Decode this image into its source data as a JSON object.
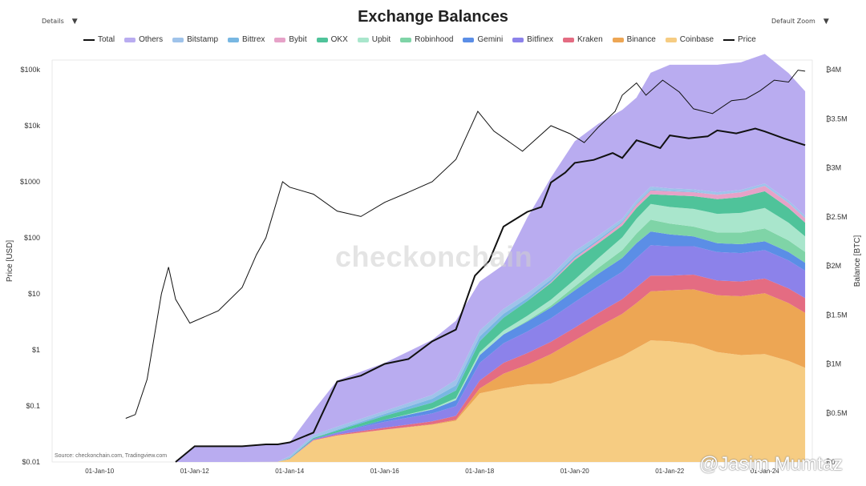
{
  "controls": {
    "details_label": "Details",
    "zoom_label": "Default Zoom",
    "dropdown_glyph": "▼"
  },
  "watermarks": {
    "center": "checkonchain",
    "corner": "@Jasim Mumtaz",
    "source": "Source: checkonchain.com, Tradingview.com"
  },
  "chart_data": {
    "type": "area",
    "title": "Exchange Balances",
    "xlabel": "",
    "ylabel_left": "Price [USD]",
    "ylabel_right": "Balance [BTC]",
    "x_range": [
      2009.0,
      2025.0
    ],
    "x_ticks": [
      {
        "x": 2010,
        "label": "01-Jan-10"
      },
      {
        "x": 2012,
        "label": "01-Jan-12"
      },
      {
        "x": 2014,
        "label": "01-Jan-14"
      },
      {
        "x": 2016,
        "label": "01-Jan-16"
      },
      {
        "x": 2018,
        "label": "01-Jan-18"
      },
      {
        "x": 2020,
        "label": "01-Jan-20"
      },
      {
        "x": 2022,
        "label": "01-Jan-22"
      },
      {
        "x": 2024,
        "label": "01-Jan-24"
      }
    ],
    "price_axis": {
      "scale": "log",
      "range": [
        0.01,
        100000
      ],
      "ticks": [
        {
          "v": 100000,
          "label": "$100k"
        },
        {
          "v": 10000,
          "label": "$10k"
        },
        {
          "v": 1000,
          "label": "$1000"
        },
        {
          "v": 100,
          "label": "$100"
        },
        {
          "v": 10,
          "label": "$10"
        },
        {
          "v": 1,
          "label": "$1"
        },
        {
          "v": 0.1,
          "label": "$0.1"
        },
        {
          "v": 0.01,
          "label": "$0.01"
        }
      ]
    },
    "balance_axis": {
      "range": [
        0,
        4000000
      ],
      "ticks": [
        {
          "v": 4000000,
          "label": "₿4M"
        },
        {
          "v": 3500000,
          "label": "₿3.5M"
        },
        {
          "v": 3000000,
          "label": "₿3M"
        },
        {
          "v": 2500000,
          "label": "₿2.5M"
        },
        {
          "v": 2000000,
          "label": "₿2M"
        },
        {
          "v": 1500000,
          "label": "₿1.5M"
        },
        {
          "v": 1000000,
          "label": "₿1M"
        },
        {
          "v": 500000,
          "label": "₿0.5M"
        },
        {
          "v": 0,
          "label": "₿0"
        }
      ]
    },
    "legend": [
      {
        "name": "Total",
        "color": "#111111",
        "kind": "line"
      },
      {
        "name": "Others",
        "color": "#b9acf0",
        "kind": "area"
      },
      {
        "name": "Bitstamp",
        "color": "#9fc3ea",
        "kind": "area"
      },
      {
        "name": "Bittrex",
        "color": "#78b7e2",
        "kind": "area"
      },
      {
        "name": "Bybit",
        "color": "#e6a2c8",
        "kind": "area"
      },
      {
        "name": "OKX",
        "color": "#4fc39a",
        "kind": "area"
      },
      {
        "name": "Upbit",
        "color": "#a9e6cc",
        "kind": "area"
      },
      {
        "name": "Robinhood",
        "color": "#7fd4a7",
        "kind": "area"
      },
      {
        "name": "Gemini",
        "color": "#5b8ee6",
        "kind": "area"
      },
      {
        "name": "Bitfinex",
        "color": "#8c82ea",
        "kind": "area"
      },
      {
        "name": "Kraken",
        "color": "#e46c82",
        "kind": "area"
      },
      {
        "name": "Binance",
        "color": "#eda654",
        "kind": "area"
      },
      {
        "name": "Coinbase",
        "color": "#f6cc82",
        "kind": "area"
      },
      {
        "name": "Price",
        "color": "#111111",
        "kind": "line"
      }
    ],
    "x": [
      2011.6,
      2012.0,
      2013.0,
      2013.75,
      2014.0,
      2014.5,
      2015.0,
      2016.0,
      2017.0,
      2017.5,
      2018.0,
      2018.5,
      2019.0,
      2019.5,
      2020.0,
      2020.5,
      2021.0,
      2021.3,
      2021.6,
      2022.0,
      2022.5,
      2023.0,
      2023.5,
      2024.0,
      2024.5,
      2024.85
    ],
    "series": [
      {
        "name": "Coinbase",
        "values": [
          0,
          0,
          0,
          2000,
          30000,
          220000,
          270000,
          330000,
          380000,
          420000,
          700000,
          750000,
          790000,
          800000,
          880000,
          980000,
          1080000,
          1160000,
          1240000,
          1230000,
          1200000,
          1120000,
          1090000,
          1100000,
          1030000,
          960000
        ]
      },
      {
        "name": "Binance",
        "values": [
          0,
          0,
          0,
          0,
          0,
          0,
          0,
          0,
          5000,
          10000,
          50000,
          150000,
          200000,
          300000,
          360000,
          400000,
          430000,
          460000,
          500000,
          520000,
          560000,
          580000,
          600000,
          620000,
          590000,
          560000
        ]
      },
      {
        "name": "Kraken",
        "values": [
          0,
          0,
          0,
          0,
          0,
          5000,
          10000,
          20000,
          30000,
          40000,
          80000,
          110000,
          120000,
          125000,
          130000,
          140000,
          150000,
          160000,
          160000,
          150000,
          150000,
          150000,
          150000,
          150000,
          150000,
          150000
        ]
      },
      {
        "name": "Bitfinex",
        "values": [
          0,
          0,
          0,
          0,
          5000,
          10000,
          20000,
          60000,
          80000,
          100000,
          180000,
          200000,
          220000,
          240000,
          260000,
          270000,
          280000,
          300000,
          310000,
          300000,
          290000,
          290000,
          290000,
          290000,
          285000,
          280000
        ]
      },
      {
        "name": "Gemini",
        "values": [
          0,
          0,
          0,
          0,
          0,
          0,
          0,
          20000,
          40000,
          60000,
          80000,
          90000,
          100000,
          110000,
          120000,
          130000,
          140000,
          150000,
          140000,
          120000,
          100000,
          90000,
          90000,
          90000,
          85000,
          80000
        ]
      },
      {
        "name": "Robinhood",
        "values": [
          0,
          0,
          0,
          0,
          0,
          0,
          0,
          0,
          0,
          0,
          0,
          0,
          10000,
          20000,
          40000,
          60000,
          80000,
          100000,
          120000,
          110000,
          100000,
          110000,
          120000,
          130000,
          120000,
          110000
        ]
      },
      {
        "name": "Upbit",
        "values": [
          0,
          0,
          0,
          0,
          0,
          0,
          0,
          0,
          10000,
          20000,
          30000,
          40000,
          50000,
          60000,
          70000,
          100000,
          130000,
          150000,
          160000,
          170000,
          180000,
          190000,
          200000,
          210000,
          180000,
          160000
        ]
      },
      {
        "name": "OKX",
        "values": [
          0,
          0,
          0,
          0,
          5000,
          10000,
          20000,
          40000,
          60000,
          80000,
          110000,
          130000,
          150000,
          170000,
          200000,
          150000,
          120000,
          110000,
          100000,
          120000,
          130000,
          150000,
          160000,
          170000,
          150000,
          140000
        ]
      },
      {
        "name": "Bybit",
        "values": [
          0,
          0,
          0,
          0,
          0,
          0,
          0,
          0,
          0,
          0,
          0,
          0,
          0,
          10000,
          20000,
          25000,
          30000,
          35000,
          40000,
          40000,
          40000,
          45000,
          50000,
          55000,
          50000,
          45000
        ]
      },
      {
        "name": "Bittrex",
        "values": [
          0,
          0,
          0,
          0,
          0,
          0,
          10000,
          20000,
          40000,
          50000,
          50000,
          40000,
          30000,
          25000,
          20000,
          15000,
          10000,
          10000,
          8000,
          5000,
          5000,
          0,
          0,
          0,
          0,
          0
        ]
      },
      {
        "name": "Bitstamp",
        "values": [
          0,
          0,
          0,
          0,
          20000,
          30000,
          30000,
          30000,
          40000,
          60000,
          60000,
          50000,
          50000,
          40000,
          50000,
          40000,
          30000,
          30000,
          30000,
          25000,
          25000,
          25000,
          25000,
          25000,
          25000,
          25000
        ]
      },
      {
        "name": "Others",
        "values": [
          0,
          160000,
          160000,
          180000,
          140000,
          250000,
          470000,
          490000,
          560000,
          600000,
          500000,
          450000,
          770000,
          1000000,
          1120000,
          1140000,
          1110000,
          1050000,
          1160000,
          1260000,
          1270000,
          1300000,
          1300000,
          1320000,
          1300000,
          1270000
        ]
      }
    ],
    "total": {
      "x": [
        2011.6,
        2012.0,
        2012.8,
        2013.0,
        2013.5,
        2013.75,
        2014.0,
        2014.5,
        2015.0,
        2015.5,
        2016.0,
        2016.5,
        2017.0,
        2017.5,
        2017.9,
        2018.2,
        2018.5,
        2019.0,
        2019.3,
        2019.5,
        2019.8,
        2020.0,
        2020.4,
        2020.8,
        2021.0,
        2021.3,
        2021.5,
        2021.8,
        2022.0,
        2022.4,
        2022.8,
        2023.0,
        2023.4,
        2023.8,
        2024.0,
        2024.4,
        2024.85
      ],
      "values": [
        0,
        160000,
        160000,
        160000,
        180000,
        180000,
        200000,
        300000,
        820000,
        880000,
        1000000,
        1050000,
        1230000,
        1350000,
        1900000,
        2050000,
        2400000,
        2550000,
        2600000,
        2850000,
        2950000,
        3050000,
        3080000,
        3150000,
        3100000,
        3280000,
        3250000,
        3200000,
        3330000,
        3300000,
        3320000,
        3380000,
        3350000,
        3400000,
        3370000,
        3300000,
        3230000
      ]
    },
    "price": {
      "x": [
        2010.55,
        2010.75,
        2011.0,
        2011.3,
        2011.45,
        2011.6,
        2011.9,
        2012.5,
        2013.0,
        2013.3,
        2013.5,
        2013.85,
        2014.0,
        2014.5,
        2015.0,
        2015.5,
        2016.0,
        2016.5,
        2017.0,
        2017.5,
        2017.96,
        2018.3,
        2018.9,
        2019.5,
        2019.9,
        2020.2,
        2020.5,
        2020.85,
        2021.0,
        2021.3,
        2021.5,
        2021.85,
        2022.2,
        2022.5,
        2022.9,
        2023.3,
        2023.6,
        2023.9,
        2024.2,
        2024.5,
        2024.7,
        2024.85
      ],
      "values": [
        0.06,
        0.07,
        0.3,
        10,
        30,
        8,
        3,
        5,
        13,
        50,
        100,
        1000,
        800,
        600,
        300,
        240,
        430,
        650,
        1000,
        2500,
        18000,
        8000,
        3500,
        10000,
        7200,
        5000,
        9500,
        18000,
        35000,
        58000,
        35000,
        65000,
        40000,
        20000,
        16500,
        28000,
        30000,
        42000,
        65000,
        60000,
        98000,
        94000
      ]
    }
  }
}
